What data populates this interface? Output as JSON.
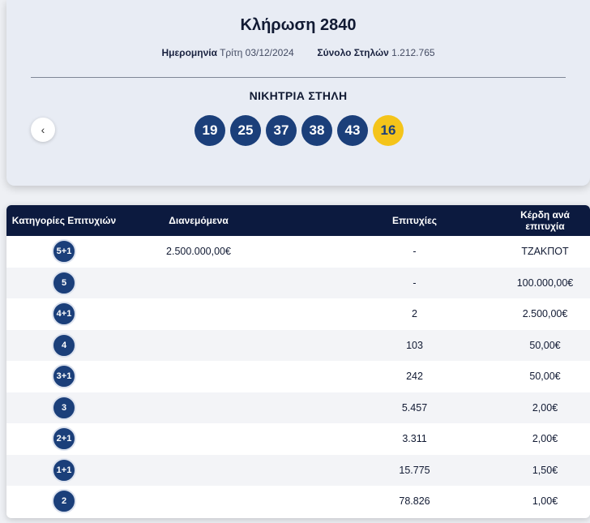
{
  "header": {
    "title": "Κλήρωση 2840",
    "date_label": "Ημερομηνία",
    "date_value": "Τρίτη 03/12/2024",
    "columns_label": "Σύνολο Στηλών",
    "columns_value": "1.212.765",
    "winning_label": "ΝΙΚΗΤΡΙΑ ΣΤΗΛΗ",
    "prev_icon": "‹"
  },
  "balls": [
    "19",
    "25",
    "37",
    "38",
    "43"
  ],
  "joker": "16",
  "colors": {
    "ball": "#1b3f7a",
    "joker": "#f4c41a",
    "table_header": "#0c1a3f"
  },
  "table": {
    "headers": {
      "category": "Κατηγορίες Επιτυχιών",
      "distributed": "Διανεμόμενα",
      "winners": "Επιτυχίες",
      "prize": "Κέρδη ανά επιτυχία"
    },
    "rows": [
      {
        "category": "5+1",
        "distributed": "2.500.000,00€",
        "winners": "-",
        "prize": "ΤΖΑΚΠΟΤ"
      },
      {
        "category": "5",
        "distributed": "",
        "winners": "-",
        "prize": "100.000,00€"
      },
      {
        "category": "4+1",
        "distributed": "",
        "winners": "2",
        "prize": "2.500,00€"
      },
      {
        "category": "4",
        "distributed": "",
        "winners": "103",
        "prize": "50,00€"
      },
      {
        "category": "3+1",
        "distributed": "",
        "winners": "242",
        "prize": "50,00€"
      },
      {
        "category": "3",
        "distributed": "",
        "winners": "5.457",
        "prize": "2,00€"
      },
      {
        "category": "2+1",
        "distributed": "",
        "winners": "3.311",
        "prize": "2,00€"
      },
      {
        "category": "1+1",
        "distributed": "",
        "winners": "15.775",
        "prize": "1,50€"
      },
      {
        "category": "2",
        "distributed": "",
        "winners": "78.826",
        "prize": "1,00€"
      }
    ]
  }
}
